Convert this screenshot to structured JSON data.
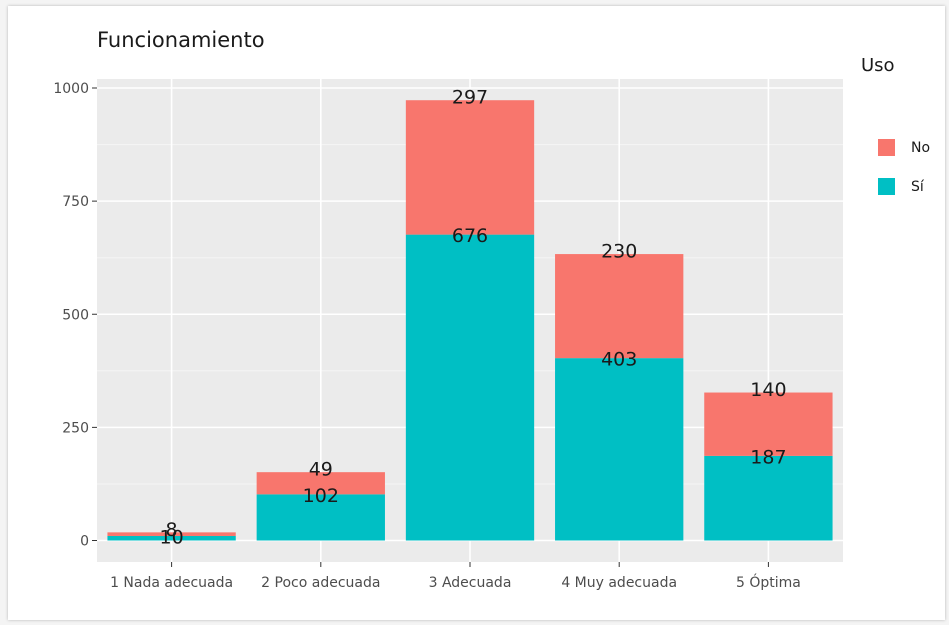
{
  "title": "Funcionamiento",
  "legend": {
    "title": "Uso",
    "items": [
      {
        "label": "No",
        "color": "#F8766D"
      },
      {
        "label": "Sí",
        "color": "#00BFC4"
      }
    ]
  },
  "chart_data": {
    "type": "bar",
    "stacked": true,
    "title": "Funcionamiento",
    "xlabel": "",
    "ylabel": "",
    "ylim": [
      0,
      1060
    ],
    "yticks": [
      0,
      250,
      500,
      750,
      1000
    ],
    "grid": true,
    "legend_position": "right",
    "categories": [
      "1 Nada adecuada",
      "2 Poco adecuada",
      "3 Adecuada",
      "4 Muy adecuada",
      "5 Óptima"
    ],
    "series": [
      {
        "name": "Sí",
        "color": "#00BFC4",
        "values": [
          10,
          102,
          676,
          403,
          187
        ]
      },
      {
        "name": "No",
        "color": "#F8766D",
        "values": [
          8,
          49,
          297,
          230,
          140
        ]
      }
    ]
  }
}
